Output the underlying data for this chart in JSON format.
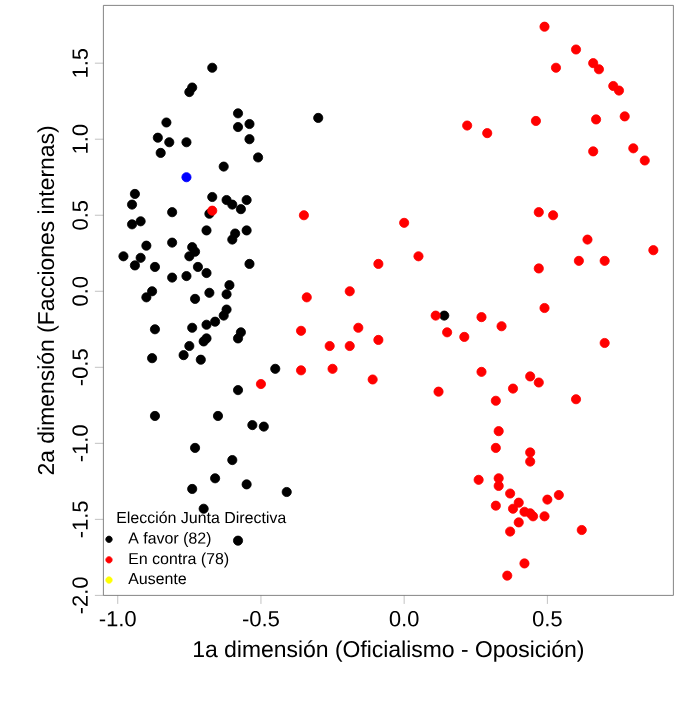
{
  "chart_data": {
    "type": "scatter",
    "xlabel": "1a dimensión (Oficialismo - Oposición)",
    "ylabel": "2a dimensión (Facciones internas)",
    "xlim": [
      -1.05,
      0.94
    ],
    "ylim": [
      -2.0,
      1.88
    ],
    "xticks": [
      {
        "value": -1.0,
        "label": "-1.0"
      },
      {
        "value": -0.5,
        "label": "-0.5"
      },
      {
        "value": 0.0,
        "label": "0.0"
      },
      {
        "value": 0.5,
        "label": "0.5"
      }
    ],
    "yticks": [
      {
        "value": -2.0,
        "label": "-2.0"
      },
      {
        "value": -1.5,
        "label": "-1.5"
      },
      {
        "value": -1.0,
        "label": "-1.0"
      },
      {
        "value": -0.5,
        "label": "-0.5"
      },
      {
        "value": 0.0,
        "label": "0.0"
      },
      {
        "value": 0.5,
        "label": "0.5"
      },
      {
        "value": 1.0,
        "label": "1.0"
      },
      {
        "value": 1.5,
        "label": "1.5"
      }
    ],
    "legend": "bottom left",
    "legend_title": "Elección Junta Directiva",
    "series": [
      {
        "name": "A favor (82)",
        "color": "#000000",
        "x": [
          -0.67,
          -0.74,
          -0.75,
          -0.83,
          -0.86,
          -0.82,
          -0.85,
          -0.76,
          -0.58,
          -0.58,
          -0.54,
          -0.54,
          -0.51,
          -0.63,
          -0.3,
          -0.94,
          -0.95,
          -0.92,
          -0.95,
          -0.81,
          -0.67,
          -0.68,
          -0.62,
          -0.6,
          -0.55,
          -0.57,
          -0.69,
          -0.59,
          -0.6,
          -0.55,
          -0.98,
          -0.94,
          -0.92,
          -0.9,
          -0.87,
          -0.81,
          -0.74,
          -0.75,
          -0.73,
          -0.81,
          -0.76,
          -0.72,
          -0.69,
          -0.54,
          -0.9,
          -0.88,
          -0.73,
          -0.68,
          -0.61,
          -0.62,
          -0.62,
          -0.63,
          -0.66,
          -0.69,
          -0.74,
          -0.87,
          -0.57,
          -0.58,
          -0.69,
          -0.7,
          -0.75,
          -0.88,
          -0.77,
          -0.71,
          -0.45,
          -0.58,
          -0.87,
          -0.65,
          -0.53,
          -0.49,
          -0.73,
          -0.6,
          -0.66,
          -0.55,
          -0.74,
          -0.41,
          -0.7,
          -0.58,
          0.14
        ],
        "values": [
          1.47,
          1.34,
          1.31,
          1.11,
          1.01,
          0.98,
          0.91,
          0.98,
          1.17,
          1.08,
          1.1,
          1.0,
          0.88,
          0.82,
          1.14,
          0.64,
          0.57,
          0.46,
          0.44,
          0.52,
          0.62,
          0.51,
          0.6,
          0.57,
          0.6,
          0.54,
          0.4,
          0.38,
          0.34,
          0.4,
          0.23,
          0.17,
          0.22,
          0.3,
          0.16,
          0.32,
          0.29,
          0.23,
          0.26,
          0.09,
          0.1,
          0.16,
          0.12,
          0.18,
          -0.04,
          0.0,
          -0.05,
          -0.01,
          0.04,
          -0.02,
          -0.12,
          -0.16,
          -0.2,
          -0.22,
          -0.24,
          -0.25,
          -0.27,
          -0.31,
          -0.31,
          -0.33,
          -0.36,
          -0.44,
          -0.42,
          -0.45,
          -0.51,
          -0.65,
          -0.82,
          -0.82,
          -0.88,
          -0.89,
          -1.03,
          -1.11,
          -1.23,
          -1.27,
          -1.3,
          -1.32,
          -1.43,
          -1.64,
          -0.16
        ]
      },
      {
        "name": "En contra (78)",
        "color": "#ff0000",
        "x": [
          -0.67,
          -0.35,
          -0.34,
          -0.19,
          -0.36,
          -0.26,
          -0.19,
          -0.16,
          -0.5,
          -0.36,
          -0.25,
          -0.09,
          -0.11,
          0.49,
          0.6,
          0.53,
          0.66,
          0.68,
          0.73,
          0.75,
          0.22,
          0.29,
          0.46,
          0.67,
          0.77,
          0.66,
          0.8,
          0.84,
          0.0,
          0.47,
          0.52,
          0.05,
          -0.09,
          0.64,
          0.87,
          0.61,
          0.7,
          0.47,
          0.11,
          0.15,
          0.21,
          0.27,
          0.34,
          0.49,
          0.7,
          0.12,
          0.27,
          0.44,
          0.47,
          0.38,
          0.32,
          0.6,
          0.33,
          0.32,
          0.44,
          0.44,
          0.26,
          0.33,
          0.33,
          0.37,
          0.4,
          0.32,
          0.54,
          0.5,
          0.38,
          0.42,
          0.44,
          0.45,
          0.49,
          0.4,
          0.37,
          0.62,
          0.42,
          0.36
        ],
        "values": [
          0.53,
          0.5,
          -0.04,
          0.0,
          -0.26,
          -0.36,
          -0.36,
          -0.24,
          -0.61,
          -0.52,
          -0.51,
          -0.32,
          -0.58,
          1.74,
          1.59,
          1.47,
          1.5,
          1.46,
          1.35,
          1.32,
          1.09,
          1.04,
          1.12,
          1.13,
          1.15,
          0.92,
          0.94,
          0.86,
          0.45,
          0.52,
          0.5,
          0.23,
          0.18,
          0.34,
          0.27,
          0.2,
          0.2,
          0.15,
          -0.16,
          -0.27,
          -0.3,
          -0.17,
          -0.23,
          -0.11,
          -0.34,
          -0.66,
          -0.53,
          -0.56,
          -0.6,
          -0.64,
          -0.72,
          -0.71,
          -0.92,
          -1.03,
          -1.06,
          -1.12,
          -1.24,
          -1.23,
          -1.28,
          -1.33,
          -1.39,
          -1.41,
          -1.34,
          -1.37,
          -1.43,
          -1.45,
          -1.46,
          -1.48,
          -1.48,
          -1.52,
          -1.58,
          -1.57,
          -1.79,
          -1.87
        ]
      },
      {
        "name": "Ausente",
        "color": "#ffff00"
      },
      {
        "color": "#0000ff",
        "x": [
          -0.76
        ],
        "values": [
          0.75
        ]
      }
    ]
  }
}
